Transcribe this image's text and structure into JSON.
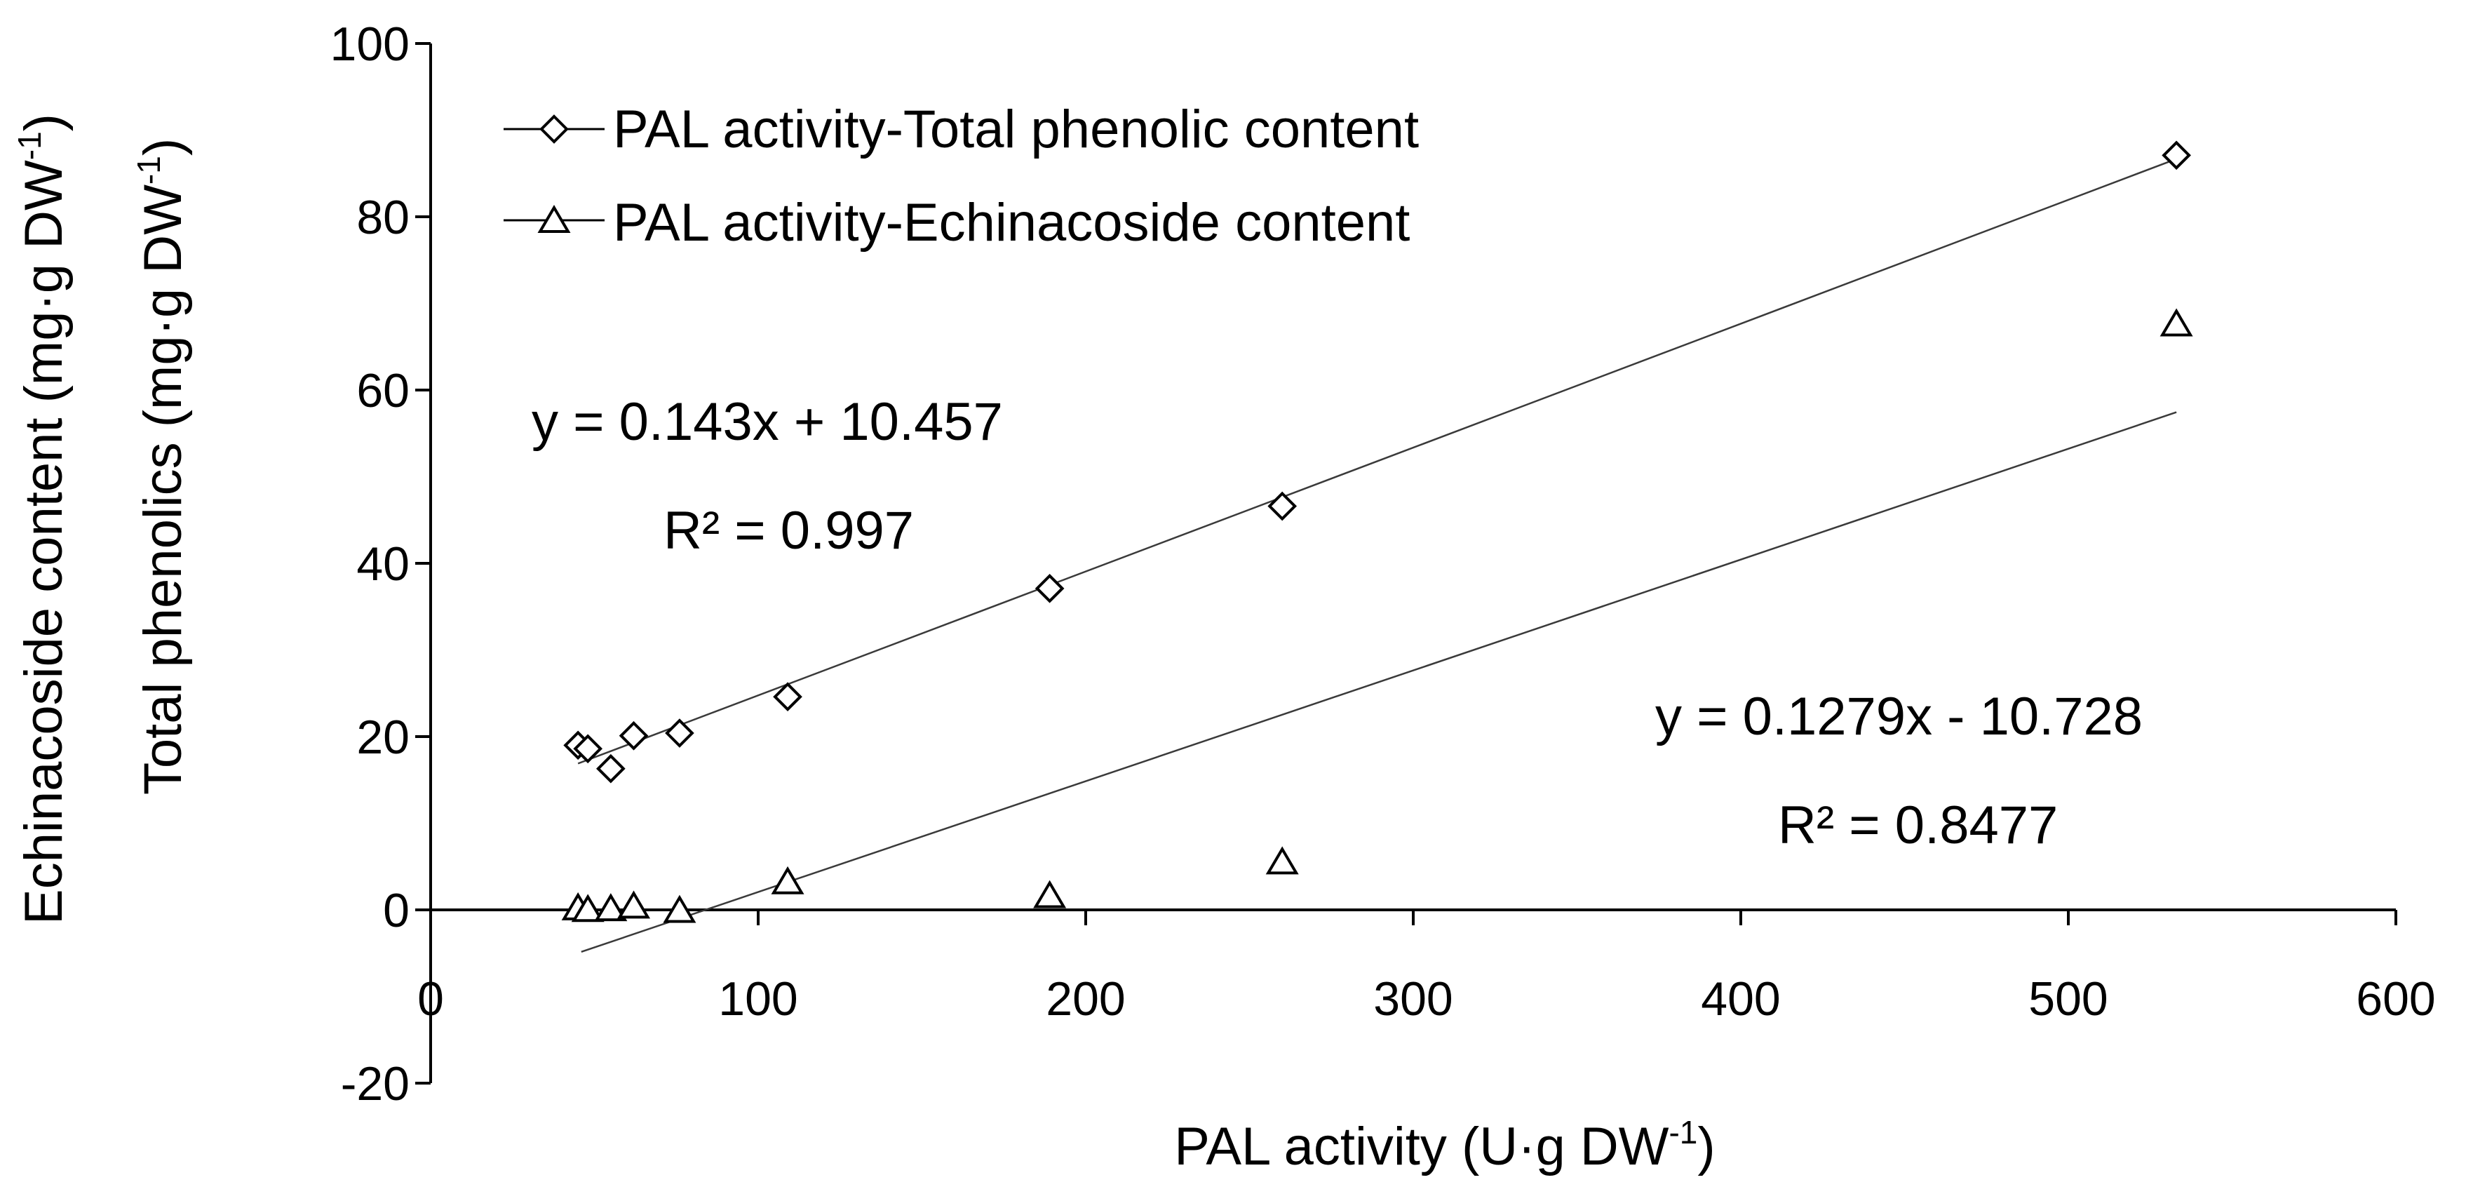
{
  "chart_data": {
    "type": "scatter",
    "xlabel": "PAL activity (U·g DW",
    "xlabel_sup": "-1",
    "xlabel_end": ")",
    "ylabel_outer": "Echinacoside content (mg·g DW",
    "ylabel_outer_sup": "-1",
    "ylabel_outer_end": ")",
    "ylabel_inner": "Total phenolics (mg·g DW",
    "ylabel_inner_sup": "-1",
    "ylabel_inner_end": ")",
    "xlim": [
      0,
      600
    ],
    "ylim": [
      -20,
      100
    ],
    "x_ticks": [
      0,
      100,
      200,
      300,
      400,
      500,
      600
    ],
    "y_ticks": [
      -20,
      0,
      20,
      40,
      60,
      80,
      100
    ],
    "x_tick_labels": [
      "0",
      "100",
      "200",
      "300",
      "400",
      "500",
      "600"
    ],
    "y_tick_labels": [
      "-20",
      "0",
      "20",
      "40",
      "60",
      "80",
      "100"
    ],
    "grid": false,
    "legend_position": "top-left",
    "series": [
      {
        "name": "PAL activity-Total phenolic content",
        "marker": "diamond",
        "x": [
          45,
          48,
          55,
          62,
          76,
          109,
          189,
          260,
          533
        ],
        "y": [
          19.0,
          18.6,
          16.3,
          20.1,
          20.4,
          24.6,
          37.1,
          46.6,
          87.1
        ],
        "trend": {
          "slope": 0.143,
          "intercept": 10.457,
          "x_range": [
            45,
            533
          ]
        },
        "equation": "y = 0.143x + 10.457",
        "r2": "R² = 0.997"
      },
      {
        "name": "PAL activity-Echinacoside content",
        "marker": "triangle",
        "x": [
          45,
          48,
          55,
          62,
          76,
          109,
          189,
          260,
          533
        ],
        "y": [
          0.2,
          0.0,
          0.1,
          0.4,
          -0.1,
          3.2,
          1.6,
          5.5,
          67.6
        ],
        "trend": {
          "slope": 0.1279,
          "intercept": -10.728,
          "x_range": [
            46,
            533
          ]
        },
        "equation": "y = 0.1279x - 10.728",
        "r2": "R² = 0.8477"
      }
    ],
    "colors": {
      "marker": "#000000",
      "line": "#3a3a3a"
    }
  }
}
